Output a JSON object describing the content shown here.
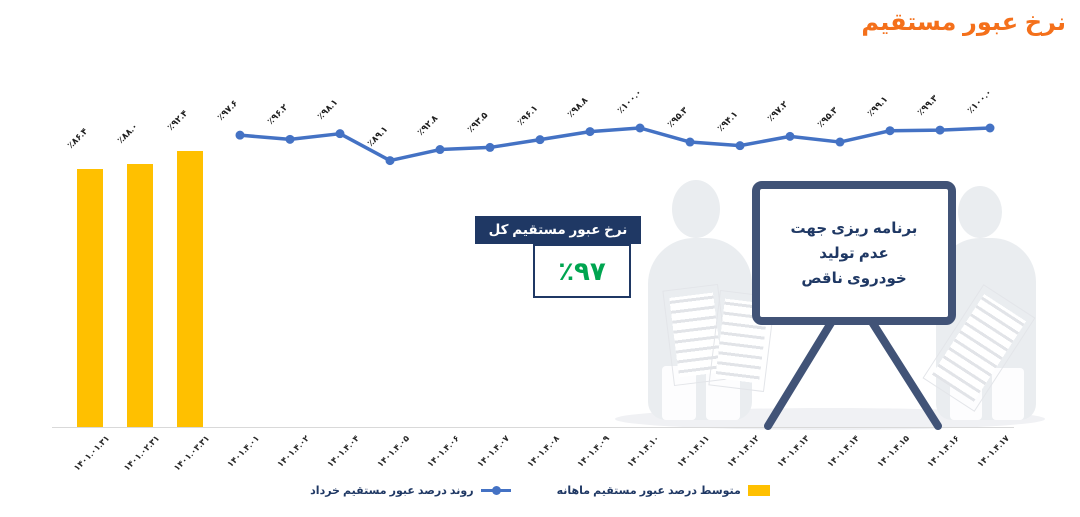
{
  "title": "نرخ عبور مستقیم",
  "annotation_total": {
    "header": "نرخ عبور مستقیم کل",
    "value_label": "٪۹۷",
    "value": 97,
    "header_bg": "#1f3864",
    "value_color": "#00a550"
  },
  "whiteboard": {
    "lines": [
      "برنامه ریزی جهت",
      "عدم تولید",
      "خودروی ناقص"
    ]
  },
  "legend": [
    {
      "label": "متوسط درصد عبور مستقیم ماهانه",
      "marker": "bar",
      "color": "#ffc000"
    },
    {
      "label": "روند درصد عبور مستقیم خرداد",
      "marker": "line",
      "color": "#4472c4"
    }
  ],
  "colors": {
    "title": "#f4701b",
    "bar": "#ffc000",
    "line": "#4472c4",
    "navy": "#1f3864",
    "board_border": "#415377",
    "green": "#00a550",
    "axis": "#d9d9d9"
  },
  "chart_data": {
    "type": "bar+line combo",
    "title": "نرخ عبور مستقیم",
    "xlabel": "",
    "ylabel": "",
    "ylim": [
      0,
      100
    ],
    "grid": false,
    "legend_position": "bottom",
    "categories": [
      "۱۴۰۱.۰۱.۳۱",
      "۱۴۰۱.۰۲.۳۱",
      "۱۴۰۱.۰۳.۳۱",
      "۱۴۰۱.۴.۰۱",
      "۱۴۰۱.۴.۰۲",
      "۱۴۰۱.۴.۰۴",
      "۱۴۰۱.۴.۰۵",
      "۱۴۰۱.۴.۰۶",
      "۱۴۰۱.۴.۰۷",
      "۱۴۰۱.۴.۰۸",
      "۱۴۰۱.۴.۰۹",
      "۱۴۰۱.۴.۱۰",
      "۱۴۰۱.۴.۱۱",
      "۱۴۰۱.۴.۱۲",
      "۱۴۰۱.۴.۱۳",
      "۱۴۰۱.۴.۱۴",
      "۱۴۰۱.۴.۱۵",
      "۱۴۰۱.۴.۱۶",
      "۱۴۰۱.۴.۱۷"
    ],
    "series": [
      {
        "name": "متوسط درصد عبور مستقیم ماهانه",
        "type": "bar",
        "color": "#ffc000",
        "x_indices": [
          0,
          1,
          2
        ],
        "values": [
          86.4,
          88.0,
          92.4
        ],
        "value_labels": [
          "٪۸۶.۴",
          "٪۸۸.۰",
          "٪۹۲.۴"
        ]
      },
      {
        "name": "روند درصد عبور مستقیم خرداد",
        "type": "line",
        "color": "#4472c4",
        "x_indices": [
          3,
          4,
          5,
          6,
          7,
          8,
          9,
          10,
          11,
          12,
          13,
          14,
          15,
          16,
          17,
          18
        ],
        "values": [
          97.6,
          96.2,
          98.1,
          89.1,
          92.8,
          93.5,
          96.1,
          98.8,
          100.0,
          95.3,
          94.1,
          97.2,
          95.3,
          99.1,
          99.3,
          100.0
        ],
        "value_labels": [
          "٪۹۷.۶",
          "٪۹۶.۲",
          "٪۹۸.۱",
          "٪۸۹.۱",
          "٪۹۲.۸",
          "٪۹۳.۵",
          "٪۹۶.۱",
          "٪۹۸.۸",
          "٪۱۰۰.۰",
          "٪۹۵.۳",
          "٪۹۴.۱",
          "٪۹۷.۲",
          "٪۹۵.۳",
          "٪۹۹.۱",
          "٪۹۹.۳",
          "٪۱۰۰.۰"
        ]
      }
    ]
  }
}
